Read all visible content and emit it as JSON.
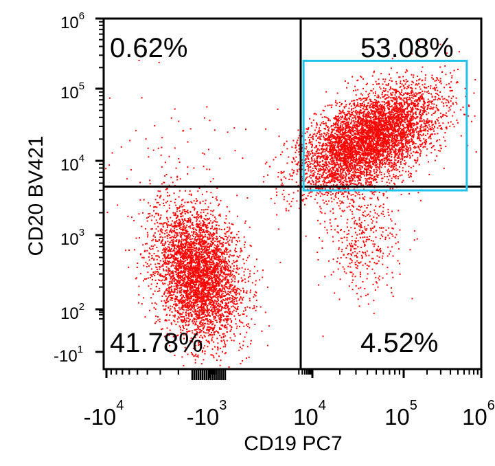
{
  "chart_data": {
    "type": "scatter",
    "title": "",
    "xlabel": "CD19 PC7",
    "ylabel": "CD20 BV421",
    "x_scale": "biexponential",
    "y_scale": "biexponential",
    "xlim": [
      -10000,
      1000000
    ],
    "ylim": [
      -10,
      1000000
    ],
    "x_ticks": [
      {
        "base": "-10",
        "exp": "4",
        "value": -10000
      },
      {
        "base": "-10",
        "exp": "3",
        "value": -1000
      },
      {
        "base": "10",
        "exp": "4",
        "value": 10000
      },
      {
        "base": "10",
        "exp": "5",
        "value": 100000
      },
      {
        "base": "10",
        "exp": "6",
        "value": 1000000
      }
    ],
    "y_ticks": [
      {
        "base": "10",
        "exp": "6",
        "value": 1000000
      },
      {
        "base": "10",
        "exp": "5",
        "value": 100000
      },
      {
        "base": "10",
        "exp": "4",
        "value": 10000
      },
      {
        "base": "10",
        "exp": "3",
        "value": 1000
      },
      {
        "base": "10",
        "exp": "2",
        "value": 100
      },
      {
        "base": "-10",
        "exp": "1",
        "value": -10
      }
    ],
    "quadrants": {
      "upper_left": "0.62%",
      "upper_right": "53.08%",
      "lower_left": "41.78%",
      "lower_right": "4.52%"
    },
    "quadrant_gate": {
      "x": 2500,
      "y": 4500
    },
    "gate_rectangle": {
      "x_min": 3500,
      "x_max": 650000,
      "y_min": 4000,
      "y_max": 250000
    },
    "populations": [
      {
        "label": "41.78%",
        "center_x": -1300,
        "center_y": 300,
        "events": 4200
      },
      {
        "label": "53.08%",
        "center_x": 40000,
        "center_y": 20000,
        "events": 5400
      },
      {
        "label": "4.52%",
        "center_x": 35000,
        "center_y": 1000,
        "events": 420
      },
      {
        "label": "0.62%",
        "center_x": -2000,
        "center_y": 10000,
        "events": 70
      }
    ],
    "colors": {
      "events": "#ff0000",
      "gate": "#1fc2e8",
      "axis": "#000000"
    },
    "grid": false,
    "legend": "none"
  }
}
